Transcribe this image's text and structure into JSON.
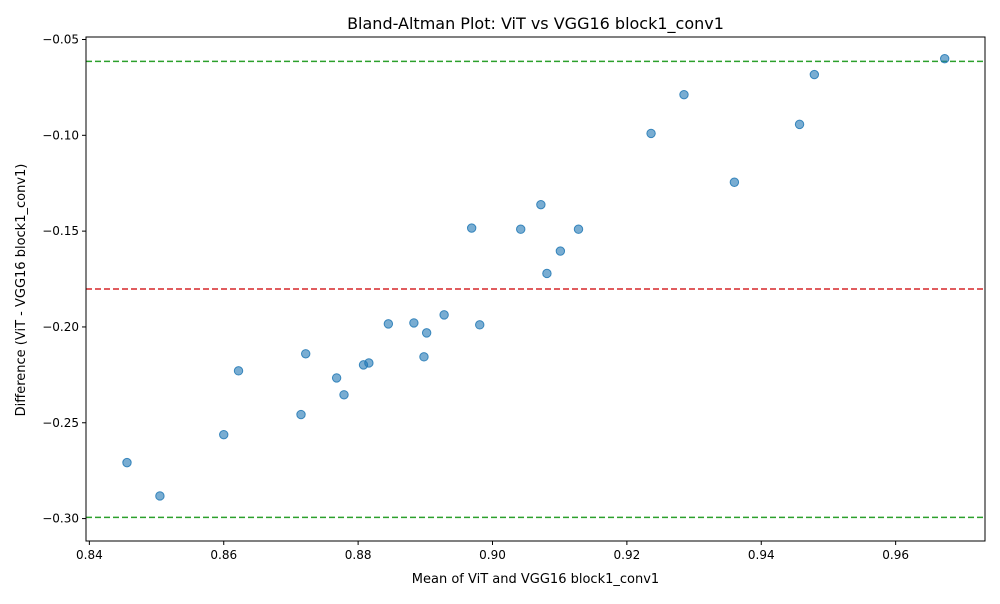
{
  "chart_data": {
    "type": "scatter",
    "title": "Bland-Altman Plot: ViT vs VGG16 block1_conv1",
    "xlabel": "Mean of ViT and VGG16 block1_conv1",
    "ylabel": "Difference (ViT - VGG16 block1_conv1)",
    "xlim": [
      0.8395,
      0.9733
    ],
    "ylim": [
      -0.3117,
      -0.0487
    ],
    "xticks": [
      0.84,
      0.86,
      0.88,
      0.9,
      0.92,
      0.94,
      0.96
    ],
    "xtick_labels": [
      "0.84",
      "0.86",
      "0.88",
      "0.90",
      "0.92",
      "0.94",
      "0.96"
    ],
    "yticks": [
      -0.3,
      -0.25,
      -0.2,
      -0.15,
      -0.1,
      -0.05
    ],
    "ytick_labels": [
      "−0.30",
      "−0.25",
      "−0.20",
      "−0.15",
      "−0.10",
      "−0.05"
    ],
    "grid": false,
    "point_color": "#1f77b4",
    "points": [
      {
        "x": 0.8456,
        "y": -0.2708
      },
      {
        "x": 0.8505,
        "y": -0.2882
      },
      {
        "x": 0.86,
        "y": -0.2562
      },
      {
        "x": 0.8622,
        "y": -0.2229
      },
      {
        "x": 0.8715,
        "y": -0.2457
      },
      {
        "x": 0.8722,
        "y": -0.214
      },
      {
        "x": 0.8768,
        "y": -0.2266
      },
      {
        "x": 0.8779,
        "y": -0.2354
      },
      {
        "x": 0.8808,
        "y": -0.2198
      },
      {
        "x": 0.8816,
        "y": -0.2188
      },
      {
        "x": 0.8845,
        "y": -0.1984
      },
      {
        "x": 0.8883,
        "y": -0.1979
      },
      {
        "x": 0.8898,
        "y": -0.2156
      },
      {
        "x": 0.8902,
        "y": -0.2031
      },
      {
        "x": 0.8928,
        "y": -0.1937
      },
      {
        "x": 0.8969,
        "y": -0.1484
      },
      {
        "x": 0.8981,
        "y": -0.1989
      },
      {
        "x": 0.9042,
        "y": -0.149
      },
      {
        "x": 0.9072,
        "y": -0.1362
      },
      {
        "x": 0.9081,
        "y": -0.1721
      },
      {
        "x": 0.9101,
        "y": -0.1604
      },
      {
        "x": 0.9128,
        "y": -0.149
      },
      {
        "x": 0.9236,
        "y": -0.099
      },
      {
        "x": 0.9285,
        "y": -0.0788
      },
      {
        "x": 0.936,
        "y": -0.1245
      },
      {
        "x": 0.9457,
        "y": -0.0943
      },
      {
        "x": 0.9479,
        "y": -0.0683
      },
      {
        "x": 0.9673,
        "y": -0.06
      }
    ],
    "reference_lines": [
      {
        "name": "mean-difference-line",
        "y": -0.1802,
        "color": "#d62728",
        "style": "dashed"
      },
      {
        "name": "upper-limit-line",
        "y": -0.0614,
        "color": "#2ca02c",
        "style": "dashed"
      },
      {
        "name": "lower-limit-line",
        "y": -0.2994,
        "color": "#2ca02c",
        "style": "dashed"
      }
    ]
  }
}
